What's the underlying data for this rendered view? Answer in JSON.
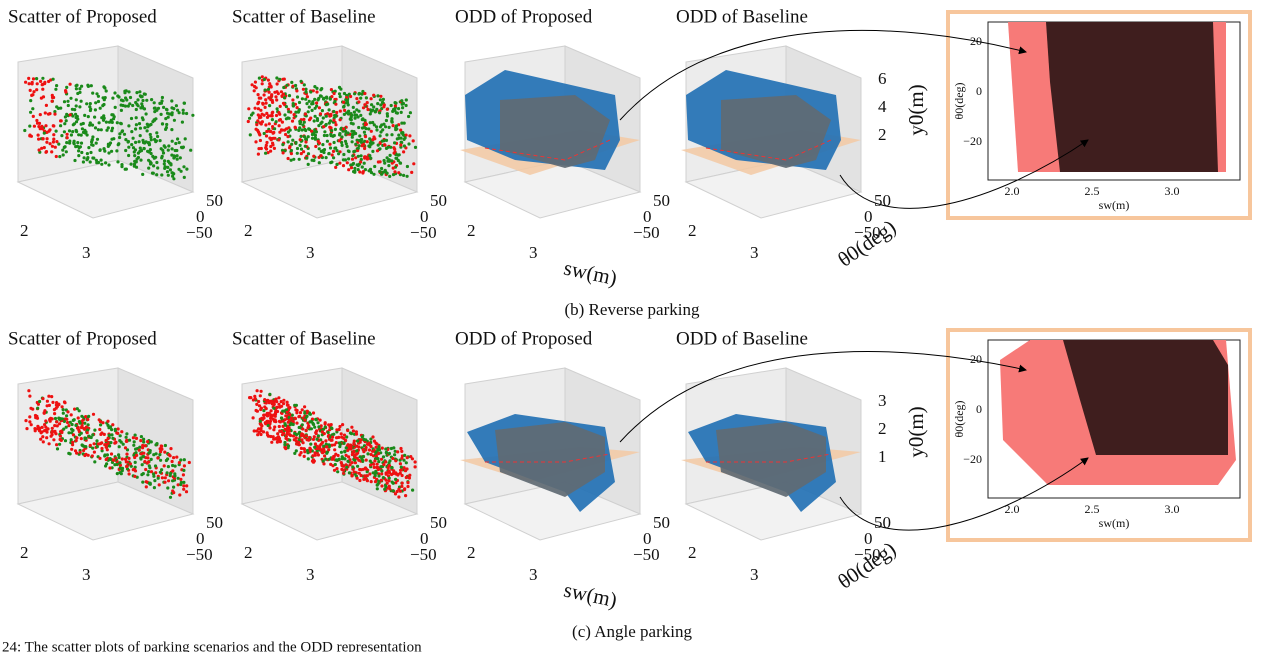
{
  "figure": {
    "rows": [
      {
        "panels": [
          {
            "title": "Scatter of Proposed",
            "xticks": [
              "2",
              "3"
            ],
            "yticks": [
              "50",
              "0",
              "−50"
            ]
          },
          {
            "title": "Scatter of Baseline",
            "xticks": [
              "2",
              "3"
            ],
            "yticks": [
              "50",
              "0",
              "−50"
            ]
          },
          {
            "title": "ODD of Proposed",
            "xticks": [
              "2",
              "3"
            ],
            "yticks": [
              "50",
              "0",
              "−50"
            ]
          },
          {
            "title": "ODD of Baseline",
            "xticks": [
              "2",
              "3"
            ],
            "yticks": [
              "50",
              "0",
              "−50"
            ]
          }
        ],
        "zticks": [
          "6",
          "4",
          "2"
        ],
        "axis_labels": {
          "z": "y0(m)",
          "x": "sw(m)",
          "y": "θ0(deg)"
        },
        "inset": {
          "yticks": [
            "20",
            "0",
            "−20"
          ],
          "xticks": [
            "2.0",
            "2.5",
            "3.0"
          ],
          "xlabel": "sw(m)",
          "ylabel": "θ0(deg)"
        },
        "caption": "(b) Reverse parking"
      },
      {
        "panels": [
          {
            "title": "Scatter of Proposed",
            "xticks": [
              "2",
              "3"
            ],
            "yticks": [
              "50",
              "0",
              "−50"
            ]
          },
          {
            "title": "Scatter of Baseline",
            "xticks": [
              "2",
              "3"
            ],
            "yticks": [
              "50",
              "0",
              "−50"
            ]
          },
          {
            "title": "ODD of Proposed",
            "xticks": [
              "2",
              "3"
            ],
            "yticks": [
              "50",
              "0",
              "−50"
            ]
          },
          {
            "title": "ODD of Baseline",
            "xticks": [
              "2",
              "3"
            ],
            "yticks": [
              "50",
              "0",
              "−50"
            ]
          }
        ],
        "zticks": [
          "3",
          "2",
          "1"
        ],
        "axis_labels": {
          "z": "y0(m)",
          "x": "sw(m)",
          "y": "θ0(deg)"
        },
        "inset": {
          "yticks": [
            "20",
            "0",
            "−20"
          ],
          "xticks": [
            "2.0",
            "2.5",
            "3.0"
          ],
          "xlabel": "sw(m)",
          "ylabel": "θ0(deg)"
        },
        "caption": "(c) Angle parking"
      }
    ],
    "footer": "24: The scatter plots of parking scenarios and the ODD representation"
  }
}
